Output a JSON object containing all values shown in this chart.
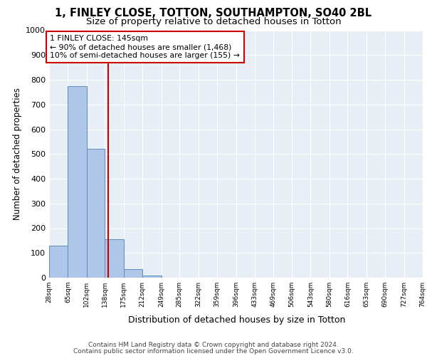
{
  "title_line1": "1, FINLEY CLOSE, TOTTON, SOUTHAMPTON, SO40 2BL",
  "title_line2": "Size of property relative to detached houses in Totton",
  "xlabel": "Distribution of detached houses by size in Totton",
  "ylabel": "Number of detached properties",
  "footer_line1": "Contains HM Land Registry data © Crown copyright and database right 2024.",
  "footer_line2": "Contains public sector information licensed under the Open Government Licence v3.0.",
  "annotation_line1": "1 FINLEY CLOSE: 145sqm",
  "annotation_line2": "← 90% of detached houses are smaller (1,468)",
  "annotation_line3": "10% of semi-detached houses are larger (155) →",
  "property_size": 145,
  "bar_edges": [
    28,
    65,
    102,
    138,
    175,
    212,
    249,
    285,
    322,
    359,
    396,
    433,
    469,
    506,
    543,
    580,
    616,
    653,
    690,
    727,
    764
  ],
  "bar_heights": [
    130,
    775,
    520,
    155,
    35,
    10,
    0,
    0,
    0,
    0,
    0,
    0,
    0,
    0,
    0,
    0,
    0,
    0,
    0,
    0
  ],
  "bar_color": "#aec6e8",
  "bar_edge_color": "#5b8db8",
  "vline_color": "#cc0000",
  "vline_x": 145,
  "annotation_box_edge_color": "#cc0000",
  "background_color": "#e8eef5",
  "ylim": [
    0,
    1000
  ],
  "yticks": [
    0,
    100,
    200,
    300,
    400,
    500,
    600,
    700,
    800,
    900,
    1000
  ]
}
